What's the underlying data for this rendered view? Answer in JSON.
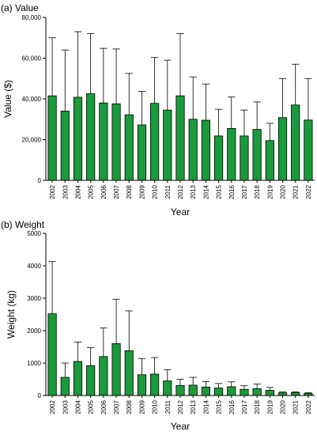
{
  "colors": {
    "bar_fill": "#1a9a3a",
    "bar_stroke": "#000000",
    "axis": "#000000"
  },
  "chart_data": [
    {
      "type": "bar",
      "title": "(a) Value",
      "xlabel": "Year",
      "ylabel": "Value ($)",
      "ylim": [
        0,
        80000
      ],
      "yticks": [
        0,
        20000,
        40000,
        60000,
        80000
      ],
      "ytick_labels": [
        "0",
        "20,000",
        "40,000",
        "60,000",
        "80,000"
      ],
      "grid": false,
      "error_bars": "upper",
      "categories": [
        "2002",
        "2003",
        "2004",
        "2005",
        "2006",
        "2007",
        "2008",
        "2009",
        "2010",
        "2011",
        "2012",
        "2013",
        "2014",
        "2015",
        "2016",
        "2017",
        "2018",
        "2019",
        "2020",
        "2021",
        "2022"
      ],
      "values": [
        41500,
        34000,
        40800,
        42500,
        38000,
        37600,
        32200,
        27200,
        37800,
        34500,
        41500,
        30000,
        29500,
        21800,
        25500,
        21800,
        25000,
        19500,
        30800,
        37000,
        29600
      ],
      "error_upper": [
        70000,
        64000,
        73000,
        72000,
        64800,
        64500,
        52500,
        43700,
        60300,
        59000,
        72000,
        50800,
        47300,
        34900,
        40900,
        34500,
        38500,
        28000,
        50000,
        57000,
        50000
      ]
    },
    {
      "type": "bar",
      "title": "(b) Weight",
      "xlabel": "Year",
      "ylabel": "Weight (kg)",
      "ylim": [
        0,
        5000
      ],
      "yticks": [
        0,
        1000,
        2000,
        3000,
        4000,
        5000
      ],
      "ytick_labels": [
        "0",
        "1000",
        "2000",
        "3000",
        "4000",
        "5000"
      ],
      "grid": false,
      "error_bars": "upper",
      "categories": [
        "2002",
        "2003",
        "2004",
        "2005",
        "2006",
        "2007",
        "2008",
        "2009",
        "2010",
        "2011",
        "2012",
        "2013",
        "2014",
        "2015",
        "2016",
        "2017",
        "2018",
        "2019",
        "2020",
        "2021",
        "2022"
      ],
      "values": [
        2520,
        560,
        1050,
        920,
        1200,
        1600,
        1380,
        640,
        660,
        450,
        310,
        320,
        260,
        230,
        270,
        190,
        210,
        160,
        80,
        90,
        60
      ],
      "error_upper": [
        4130,
        1000,
        1650,
        1480,
        2080,
        2970,
        2610,
        1140,
        1170,
        790,
        500,
        560,
        430,
        370,
        420,
        300,
        350,
        250,
        110,
        110,
        90
      ]
    }
  ]
}
